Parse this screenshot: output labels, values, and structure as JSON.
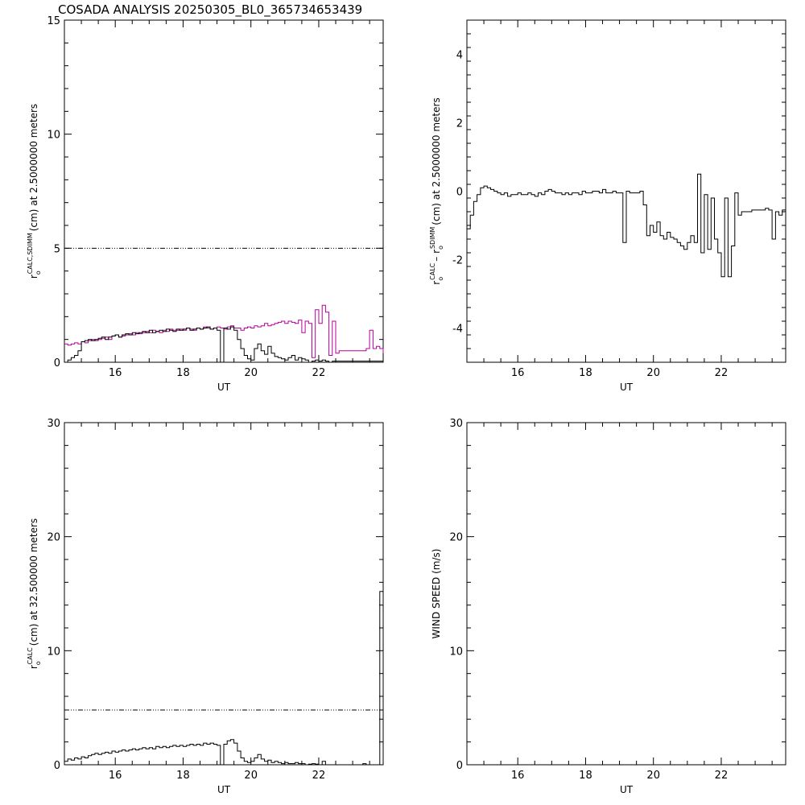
{
  "title": "COSADA ANALYSIS 20250305_BL0_365734653439",
  "xlabel": "UT",
  "colors": {
    "axis": "#000000",
    "series_black": "#000000",
    "series_magenta": "#b4009b"
  },
  "chart_data": [
    {
      "id": "tl",
      "type": "line",
      "ylabel_parts": [
        "r",
        "o",
        "CALC,SDIMM",
        "(cm)  at  2.5000000 meters"
      ],
      "xlim": [
        14.5,
        23.9
      ],
      "ylim": [
        0,
        15
      ],
      "xticks": [
        "16",
        "18",
        "20",
        "22"
      ],
      "yticks": [
        "0",
        "5",
        "10",
        "15"
      ],
      "ref_line": 5,
      "series": [
        {
          "color": "#b4009b",
          "x": [
            14.5,
            14.6,
            14.7,
            14.8,
            14.9,
            15.0,
            15.1,
            15.2,
            15.3,
            15.4,
            15.5,
            15.6,
            15.7,
            15.8,
            15.9,
            16.0,
            16.1,
            16.2,
            16.3,
            16.4,
            16.5,
            16.6,
            16.7,
            16.8,
            16.9,
            17.0,
            17.1,
            17.2,
            17.3,
            17.4,
            17.5,
            17.6,
            17.7,
            17.8,
            17.9,
            18.0,
            18.1,
            18.2,
            18.3,
            18.4,
            18.5,
            18.6,
            18.7,
            18.8,
            18.9,
            19.0,
            19.1,
            19.2,
            19.3,
            19.4,
            19.5,
            19.6,
            19.7,
            19.8,
            19.9,
            20.0,
            20.1,
            20.2,
            20.3,
            20.4,
            20.5,
            20.6,
            20.7,
            20.8,
            20.9,
            21.0,
            21.1,
            21.2,
            21.3,
            21.4,
            21.5,
            21.6,
            21.7,
            21.8,
            21.9,
            22.0,
            22.1,
            22.2,
            22.3,
            22.4,
            22.5,
            22.6,
            22.7,
            22.8,
            22.9,
            23.0,
            23.1,
            23.2,
            23.3,
            23.4,
            23.5,
            23.6,
            23.7,
            23.8,
            23.9
          ],
          "y": [
            0.8,
            0.75,
            0.8,
            0.85,
            0.8,
            0.9,
            0.85,
            0.95,
            1.0,
            0.95,
            1.0,
            1.05,
            1.1,
            1.0,
            1.15,
            1.2,
            1.1,
            1.15,
            1.2,
            1.25,
            1.2,
            1.3,
            1.25,
            1.3,
            1.35,
            1.3,
            1.4,
            1.35,
            1.3,
            1.4,
            1.35,
            1.45,
            1.4,
            1.4,
            1.45,
            1.4,
            1.5,
            1.45,
            1.4,
            1.5,
            1.45,
            1.55,
            1.5,
            1.45,
            1.5,
            1.55,
            1.5,
            1.45,
            1.55,
            1.6,
            1.5,
            1.5,
            1.4,
            1.5,
            1.55,
            1.5,
            1.6,
            1.55,
            1.6,
            1.7,
            1.6,
            1.65,
            1.7,
            1.75,
            1.8,
            1.7,
            1.8,
            1.75,
            1.7,
            1.85,
            1.3,
            1.8,
            1.7,
            0.2,
            2.3,
            1.7,
            2.5,
            2.2,
            0.3,
            1.8,
            0.4,
            0.5,
            0.5,
            0.5,
            0.5,
            0.5,
            0.5,
            0.5,
            0.5,
            0.6,
            1.4,
            0.6,
            0.7,
            0.6,
            0.4
          ]
        },
        {
          "color": "#000000",
          "x": [
            14.5,
            14.6,
            14.7,
            14.8,
            14.9,
            15.0,
            15.1,
            15.2,
            15.3,
            15.4,
            15.5,
            15.6,
            15.7,
            15.8,
            15.9,
            16.0,
            16.1,
            16.2,
            16.3,
            16.4,
            16.5,
            16.6,
            16.7,
            16.8,
            16.9,
            17.0,
            17.1,
            17.2,
            17.3,
            17.4,
            17.5,
            17.6,
            17.7,
            17.8,
            17.9,
            18.0,
            18.1,
            18.2,
            18.3,
            18.4,
            18.5,
            18.6,
            18.7,
            18.8,
            18.9,
            19.0,
            19.1,
            19.2,
            19.3,
            19.4,
            19.5,
            19.6,
            19.7,
            19.8,
            19.9,
            20.0,
            20.1,
            20.2,
            20.3,
            20.4,
            20.5,
            20.6,
            20.7,
            20.8,
            20.9,
            21.0,
            21.1,
            21.2,
            21.3,
            21.4,
            21.5,
            21.6,
            21.7,
            21.8,
            21.9,
            22.0,
            22.1,
            22.2,
            22.3,
            22.4,
            22.5,
            22.6,
            22.7,
            22.8,
            22.9,
            23.0,
            23.1,
            23.2,
            23.3,
            23.4,
            23.5,
            23.6,
            23.7,
            23.8,
            23.9
          ],
          "y": [
            0.0,
            0.1,
            0.2,
            0.3,
            0.5,
            0.9,
            0.95,
            1.0,
            0.95,
            1.0,
            1.05,
            1.1,
            1.0,
            1.1,
            1.15,
            1.2,
            1.1,
            1.2,
            1.25,
            1.2,
            1.3,
            1.25,
            1.3,
            1.35,
            1.3,
            1.4,
            1.3,
            1.35,
            1.4,
            1.35,
            1.45,
            1.4,
            1.35,
            1.45,
            1.4,
            1.45,
            1.5,
            1.4,
            1.45,
            1.5,
            1.45,
            1.5,
            1.55,
            1.45,
            1.5,
            1.4,
            0.0,
            1.5,
            1.45,
            1.55,
            1.4,
            1.0,
            0.6,
            0.3,
            0.15,
            0.1,
            0.6,
            0.8,
            0.5,
            0.35,
            0.7,
            0.4,
            0.25,
            0.2,
            0.15,
            0.1,
            0.2,
            0.3,
            0.1,
            0.2,
            0.15,
            0.1,
            0.0,
            0.05,
            0.1,
            0.05,
            0.1,
            0.05,
            0.0,
            0.05,
            0.05,
            0.05,
            0.05,
            0.05,
            0.05,
            0.05,
            0.05,
            0.05,
            0.05,
            0.05,
            0.05,
            0.05,
            0.05,
            0.05,
            0.05
          ]
        }
      ]
    },
    {
      "id": "tr",
      "type": "line",
      "ylabel_parts": [
        "r",
        "o",
        "CALC",
        "– r",
        "o",
        "SDIMM",
        "(cm) at 2.5000000 meters"
      ],
      "xlim": [
        14.5,
        23.9
      ],
      "ylim": [
        -5,
        5
      ],
      "xticks": [
        "16",
        "18",
        "20",
        "22"
      ],
      "yticks": [
        "-4",
        "-2",
        "0",
        "2",
        "4"
      ],
      "series": [
        {
          "color": "#000000",
          "x": [
            14.5,
            14.6,
            14.7,
            14.8,
            14.9,
            15.0,
            15.1,
            15.2,
            15.3,
            15.4,
            15.5,
            15.6,
            15.7,
            15.8,
            15.9,
            16.0,
            16.1,
            16.2,
            16.3,
            16.4,
            16.5,
            16.6,
            16.7,
            16.8,
            16.9,
            17.0,
            17.1,
            17.2,
            17.3,
            17.4,
            17.5,
            17.6,
            17.7,
            17.8,
            17.9,
            18.0,
            18.1,
            18.2,
            18.3,
            18.4,
            18.5,
            18.6,
            18.7,
            18.8,
            18.9,
            19.0,
            19.1,
            19.2,
            19.3,
            19.4,
            19.5,
            19.6,
            19.7,
            19.8,
            19.9,
            20.0,
            20.1,
            20.2,
            20.3,
            20.4,
            20.5,
            20.6,
            20.7,
            20.8,
            20.9,
            21.0,
            21.1,
            21.2,
            21.3,
            21.4,
            21.5,
            21.6,
            21.7,
            21.8,
            21.9,
            22.0,
            22.1,
            22.2,
            22.3,
            22.4,
            22.5,
            22.6,
            22.7,
            22.8,
            22.9,
            23.0,
            23.1,
            23.2,
            23.3,
            23.4,
            23.5,
            23.6,
            23.7,
            23.8,
            23.9
          ],
          "y": [
            -1.1,
            -0.7,
            -0.3,
            -0.1,
            0.1,
            0.15,
            0.1,
            0.05,
            0.0,
            -0.05,
            -0.1,
            -0.05,
            -0.15,
            -0.1,
            -0.1,
            -0.05,
            -0.1,
            -0.1,
            -0.05,
            -0.1,
            -0.15,
            -0.05,
            -0.1,
            0.0,
            0.05,
            0.0,
            -0.05,
            -0.05,
            -0.1,
            -0.05,
            -0.1,
            -0.05,
            -0.05,
            -0.1,
            0.0,
            -0.05,
            -0.05,
            0.0,
            0.0,
            -0.05,
            0.05,
            -0.05,
            -0.05,
            0.0,
            -0.05,
            -0.05,
            -1.5,
            0.0,
            -0.05,
            -0.05,
            -0.05,
            0.0,
            -0.4,
            -1.3,
            -1.0,
            -1.2,
            -0.9,
            -1.3,
            -1.4,
            -1.2,
            -1.35,
            -1.4,
            -1.5,
            -1.6,
            -1.7,
            -1.5,
            -1.3,
            -1.5,
            0.5,
            -1.8,
            -0.1,
            -1.7,
            -0.2,
            -1.4,
            -1.8,
            -2.5,
            -0.2,
            -2.5,
            -1.6,
            -0.05,
            -0.7,
            -0.6,
            -0.6,
            -0.6,
            -0.55,
            -0.55,
            -0.55,
            -0.55,
            -0.5,
            -0.55,
            -1.4,
            -0.6,
            -0.7,
            -0.55,
            -0.3
          ]
        }
      ]
    },
    {
      "id": "bl",
      "type": "line",
      "ylabel_parts": [
        "r",
        "o",
        "CALC",
        "(cm) at 32.500000 meters"
      ],
      "xlim": [
        14.5,
        23.9
      ],
      "ylim": [
        0,
        30
      ],
      "xticks": [
        "16",
        "18",
        "20",
        "22"
      ],
      "yticks": [
        "0",
        "10",
        "20",
        "30"
      ],
      "ref_line": 4.8,
      "series": [
        {
          "color": "#000000",
          "x": [
            14.5,
            14.6,
            14.7,
            14.8,
            14.9,
            15.0,
            15.1,
            15.2,
            15.3,
            15.4,
            15.5,
            15.6,
            15.7,
            15.8,
            15.9,
            16.0,
            16.1,
            16.2,
            16.3,
            16.4,
            16.5,
            16.6,
            16.7,
            16.8,
            16.9,
            17.0,
            17.1,
            17.2,
            17.3,
            17.4,
            17.5,
            17.6,
            17.7,
            17.8,
            17.9,
            18.0,
            18.1,
            18.2,
            18.3,
            18.4,
            18.5,
            18.6,
            18.7,
            18.8,
            18.9,
            19.0,
            19.1,
            19.2,
            19.3,
            19.4,
            19.5,
            19.6,
            19.7,
            19.8,
            19.9,
            20.0,
            20.1,
            20.2,
            20.3,
            20.4,
            20.5,
            20.6,
            20.7,
            20.8,
            20.9,
            21.0,
            21.1,
            21.2,
            21.3,
            21.4,
            21.5,
            21.6,
            21.7,
            21.8,
            21.9,
            22.0,
            22.1,
            22.2,
            22.3,
            22.4,
            22.5,
            22.6,
            22.7,
            22.8,
            22.9,
            23.0,
            23.1,
            23.2,
            23.3,
            23.4,
            23.5,
            23.6,
            23.7,
            23.8,
            23.9
          ],
          "y": [
            0.3,
            0.5,
            0.4,
            0.6,
            0.5,
            0.7,
            0.6,
            0.8,
            0.9,
            1.0,
            0.9,
            1.0,
            1.1,
            1.0,
            1.2,
            1.1,
            1.2,
            1.3,
            1.2,
            1.3,
            1.4,
            1.3,
            1.4,
            1.5,
            1.4,
            1.5,
            1.4,
            1.6,
            1.5,
            1.6,
            1.5,
            1.6,
            1.7,
            1.6,
            1.7,
            1.6,
            1.7,
            1.8,
            1.7,
            1.8,
            1.7,
            1.9,
            1.8,
            1.9,
            1.8,
            1.7,
            0.0,
            1.8,
            2.1,
            2.2,
            1.9,
            1.2,
            0.6,
            0.3,
            0.2,
            0.3,
            0.6,
            0.9,
            0.5,
            0.3,
            0.4,
            0.2,
            0.3,
            0.2,
            0.1,
            0.2,
            0.1,
            0.1,
            0.2,
            0.1,
            0.1,
            0.0,
            0.05,
            0.1,
            0.05,
            0.0,
            0.3,
            0.0,
            0.0,
            0.0,
            0.0,
            0.0,
            0.0,
            0.0,
            0.0,
            0.0,
            0.0,
            0.0,
            0.1,
            0.0,
            0.0,
            0.0,
            0.0,
            15.2,
            0.3
          ]
        }
      ]
    },
    {
      "id": "br",
      "type": "line",
      "ylabel_parts": [
        "WIND SPEED (m/s)"
      ],
      "xlim": [
        14.5,
        23.9
      ],
      "ylim": [
        0,
        30
      ],
      "xticks": [
        "16",
        "18",
        "20",
        "22"
      ],
      "yticks": [
        "0",
        "10",
        "20",
        "30"
      ],
      "series": []
    }
  ]
}
